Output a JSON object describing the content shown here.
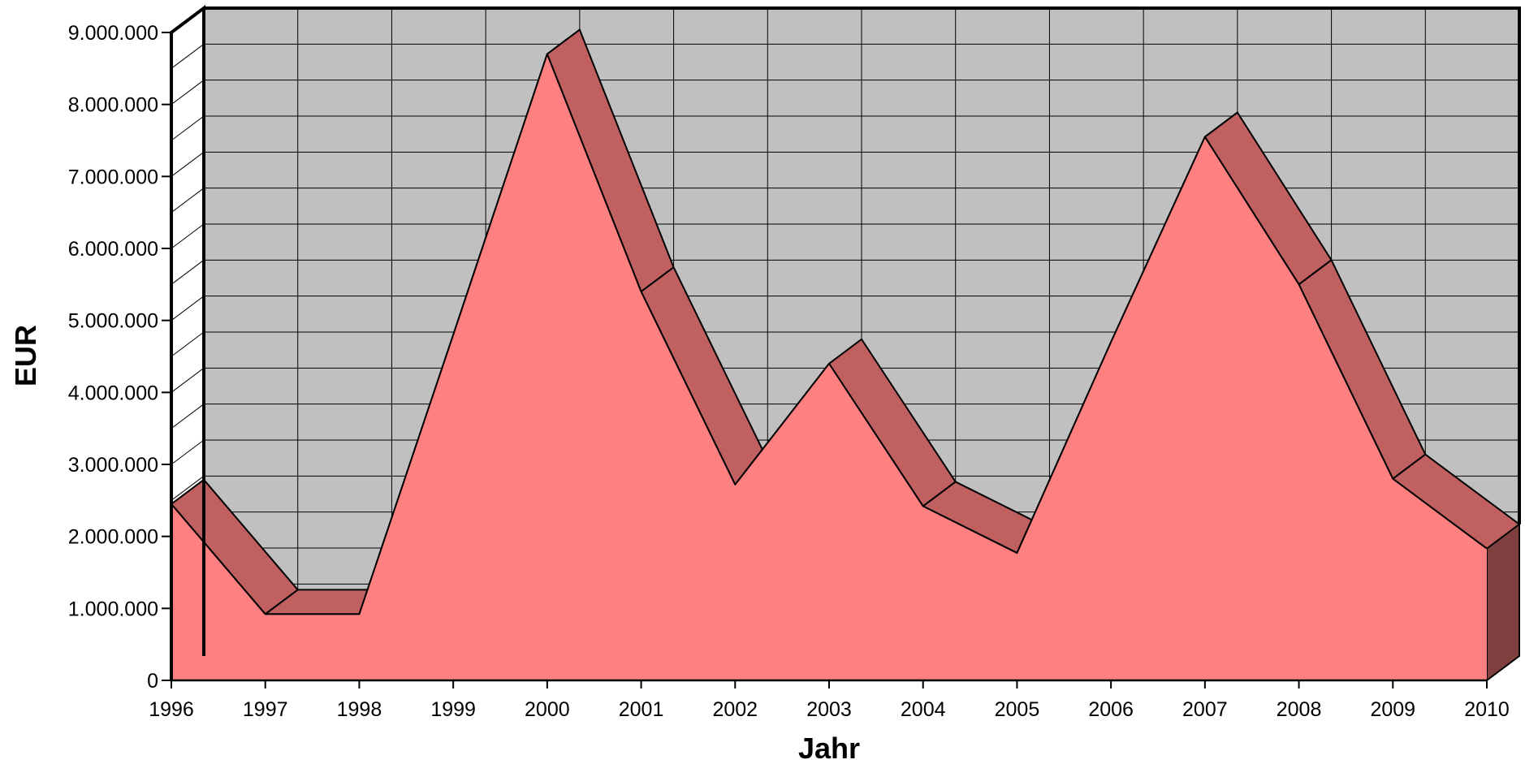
{
  "chart_data": {
    "type": "area",
    "style": "3d",
    "xlabel": "Jahr",
    "ylabel": "EUR",
    "categories": [
      "1996",
      "1997",
      "1998",
      "1999",
      "2000",
      "2001",
      "2002",
      "2003",
      "2004",
      "2005",
      "2006",
      "2007",
      "2008",
      "2009",
      "2010"
    ],
    "series": [
      {
        "values": [
          2450000,
          920000,
          920000,
          4800000,
          8700000,
          5400000,
          2720000,
          4400000,
          2420000,
          1770000,
          4700000,
          7550000,
          5500000,
          2800000,
          1830000
        ]
      }
    ],
    "ylim": [
      0,
      9000000
    ],
    "y_ticks": [
      0,
      1000000,
      2000000,
      3000000,
      4000000,
      5000000,
      6000000,
      7000000,
      8000000,
      9000000
    ],
    "y_tick_labels": [
      "0",
      "1.000.000",
      "2.000.000",
      "3.000.000",
      "4.000.000",
      "5.000.000",
      "6.000.000",
      "7.000.000",
      "8.000.000",
      "9.000.000"
    ],
    "grid": true,
    "legend": "none",
    "colors": {
      "back_wall": "#c0c0c0",
      "area_front": "#ff8080",
      "area_top": "#c06060",
      "area_side": "#804040",
      "grid": "#000000"
    }
  }
}
